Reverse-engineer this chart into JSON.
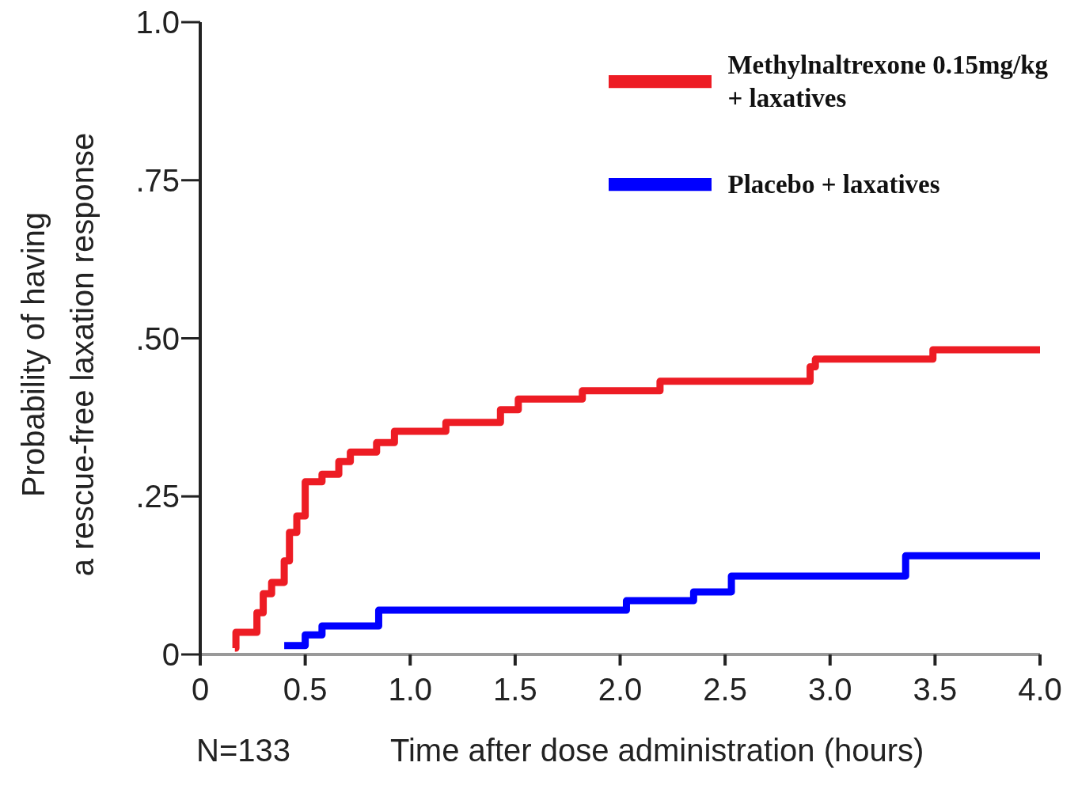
{
  "chart_data": {
    "type": "step",
    "xlabel": "Time after dose administration (hours)",
    "ylabel": "Probability of having\na rescue-free laxation response",
    "annotations": [
      "N=133"
    ],
    "xlim": [
      0,
      4
    ],
    "xticks": [
      0,
      0.5,
      {
        "value": 1,
        "label": "1.0"
      },
      1.5,
      {
        "value": 2,
        "label": "2.0"
      },
      2.5,
      {
        "value": 3,
        "label": "3.0"
      },
      3.5,
      {
        "value": 4,
        "label": "4.0"
      }
    ],
    "ylim": [
      0,
      1
    ],
    "yticks": [
      0,
      {
        "value": 0.25,
        "label": ".25"
      },
      {
        "value": 0.5,
        "label": ".50"
      },
      {
        "value": 0.75,
        "label": ".75"
      },
      {
        "value": 1,
        "label": "1.0"
      }
    ],
    "grid": false,
    "legend": "top right",
    "marker": "none",
    "line_style": "solid",
    "series": [
      {
        "name": "Methylnaltrexone 0.15mg/kg\n+ laxatives",
        "color": "#ed1c24",
        "x": [
          0.165,
          0.17,
          0.27,
          0.3,
          0.34,
          0.4,
          0.425,
          0.46,
          0.5,
          0.58,
          0.66,
          0.715,
          0.84,
          0.925,
          1.17,
          1.43,
          1.515,
          1.82,
          2.19,
          2.905,
          2.93,
          3.49,
          4.0
        ],
        "values": [
          0.01,
          0.035,
          0.066,
          0.096,
          0.114,
          0.148,
          0.193,
          0.219,
          0.273,
          0.285,
          0.305,
          0.32,
          0.335,
          0.353,
          0.367,
          0.387,
          0.404,
          0.417,
          0.432,
          0.455,
          0.467,
          0.482,
          0.482
        ]
      },
      {
        "name": "Placebo + laxatives",
        "color": "#0000ff",
        "x": [
          0.4,
          0.5,
          0.58,
          0.85,
          2.03,
          2.35,
          2.53,
          3.36,
          4.0
        ],
        "values": [
          0.014,
          0.031,
          0.045,
          0.07,
          0.085,
          0.099,
          0.124,
          0.156,
          0.156
        ]
      }
    ]
  }
}
